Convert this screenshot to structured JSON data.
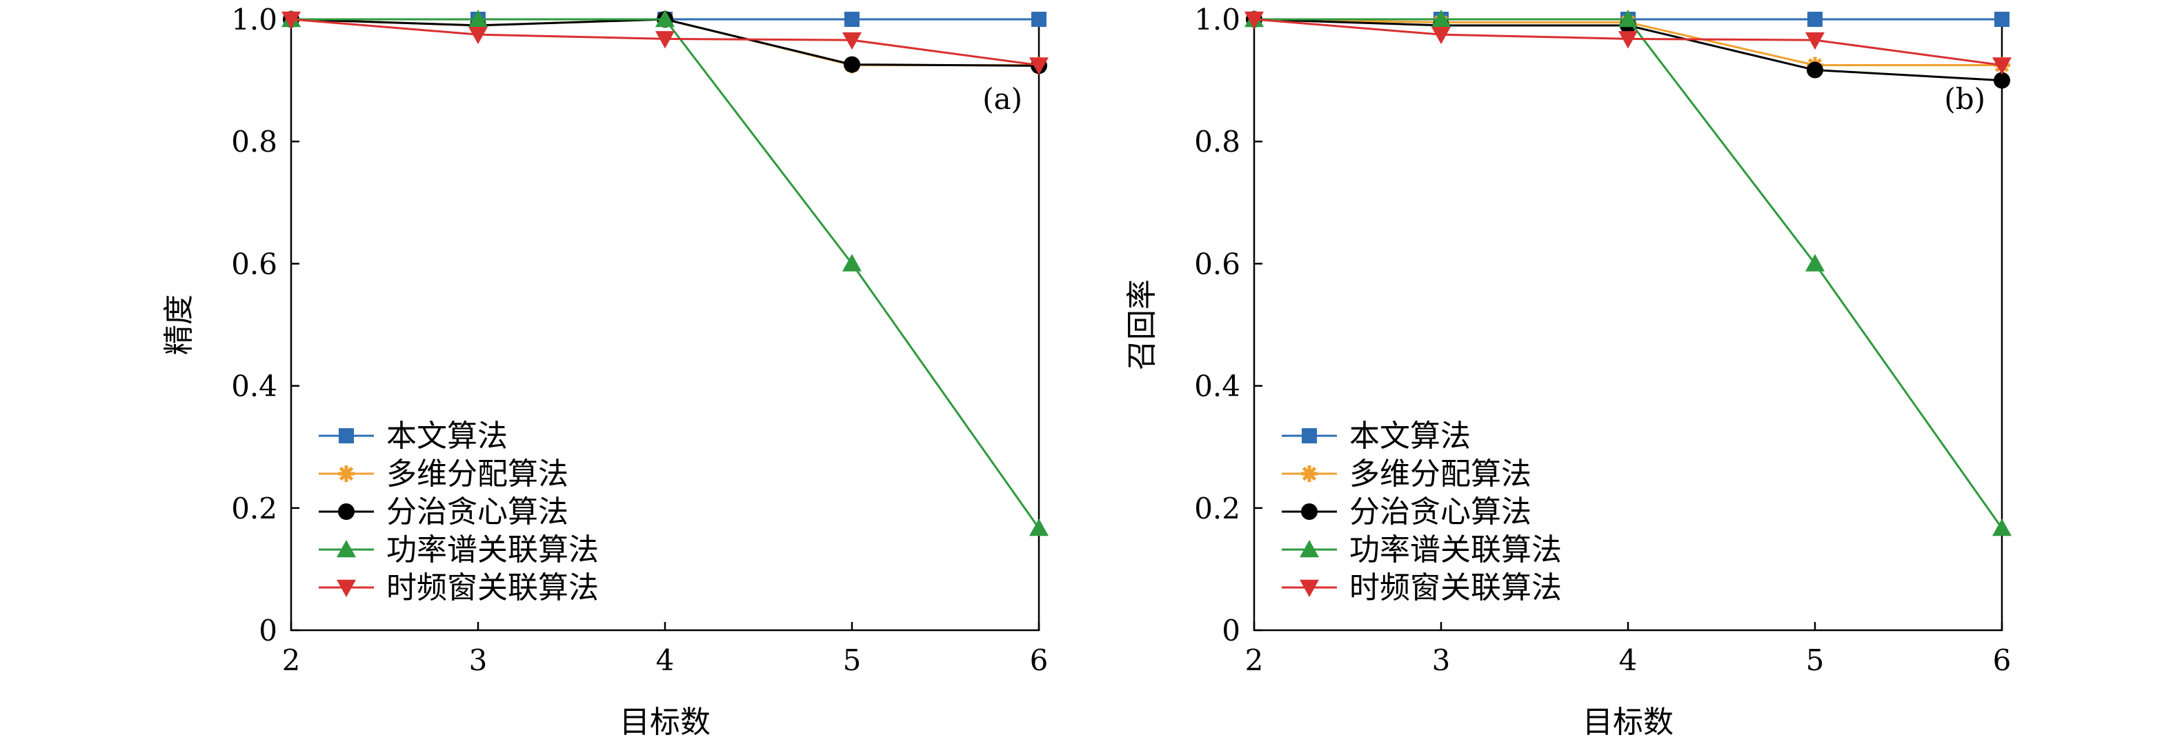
{
  "chart_data": [
    {
      "type": "line",
      "panel_label": "(a)",
      "xlabel": "目标数",
      "ylabel": "精度",
      "x": [
        2,
        3,
        4,
        5,
        6
      ],
      "xlim": [
        2,
        6
      ],
      "ylim": [
        0,
        1.0
      ],
      "xticks": [
        "2",
        "3",
        "4",
        "5",
        "6"
      ],
      "yticks": [
        "0",
        "0.2",
        "0.4",
        "0.6",
        "0.8",
        "1.0"
      ],
      "grid": false,
      "legend_position": "bottom-left",
      "series": [
        {
          "name": "本文算法",
          "color": "#2E6DB4",
          "marker": "square",
          "values": [
            1.0,
            1.0,
            1.0,
            1.0,
            1.0
          ]
        },
        {
          "name": "多维分配算法",
          "color": "#F0A030",
          "marker": "star",
          "values": [
            1.0,
            0.99,
            1.0,
            0.925,
            0.925
          ]
        },
        {
          "name": "分治贪心算法",
          "color": "#000000",
          "marker": "circle",
          "values": [
            1.0,
            0.99,
            1.0,
            0.926,
            0.924
          ]
        },
        {
          "name": "功率谱关联算法",
          "color": "#2E9A3E",
          "marker": "triangle-up",
          "values": [
            1.0,
            1.0,
            1.0,
            0.6,
            0.167
          ]
        },
        {
          "name": "时频窗关联算法",
          "color": "#D93030",
          "marker": "triangle-down",
          "values": [
            1.0,
            0.975,
            0.968,
            0.966,
            0.925
          ]
        }
      ]
    },
    {
      "type": "line",
      "panel_label": "(b)",
      "xlabel": "目标数",
      "ylabel": "召回率",
      "x": [
        2,
        3,
        4,
        5,
        6
      ],
      "xlim": [
        2,
        6
      ],
      "ylim": [
        0,
        1.0
      ],
      "xticks": [
        "2",
        "3",
        "4",
        "5",
        "6"
      ],
      "yticks": [
        "0",
        "0.2",
        "0.4",
        "0.6",
        "0.8",
        "1.0"
      ],
      "grid": false,
      "legend_position": "bottom-left",
      "series": [
        {
          "name": "本文算法",
          "color": "#2E6DB4",
          "marker": "square",
          "values": [
            1.0,
            1.0,
            1.0,
            1.0,
            1.0
          ]
        },
        {
          "name": "多维分配算法",
          "color": "#F0A030",
          "marker": "star",
          "values": [
            1.0,
            0.995,
            0.995,
            0.925,
            0.925
          ]
        },
        {
          "name": "分治贪心算法",
          "color": "#000000",
          "marker": "circle",
          "values": [
            1.0,
            0.99,
            0.99,
            0.917,
            0.9
          ]
        },
        {
          "name": "功率谱关联算法",
          "color": "#2E9A3E",
          "marker": "triangle-up",
          "values": [
            1.0,
            1.0,
            1.0,
            0.6,
            0.167
          ]
        },
        {
          "name": "时频窗关联算法",
          "color": "#D93030",
          "marker": "triangle-down",
          "values": [
            1.0,
            0.975,
            0.968,
            0.966,
            0.925
          ]
        }
      ]
    }
  ]
}
